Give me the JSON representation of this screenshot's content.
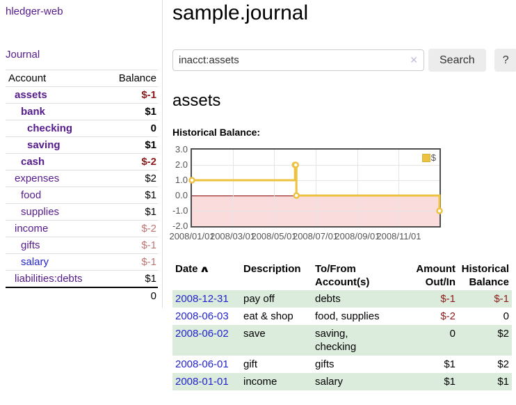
{
  "sidebar": {
    "app_title": "hledger-web",
    "journal_label": "Journal",
    "accounts_table": {
      "headers": {
        "account": "Account",
        "balance": "Balance"
      },
      "rows": [
        {
          "name": "assets",
          "depth": 1,
          "bold": true,
          "balance": "$-1",
          "neg": "strong",
          "link_color": "purple"
        },
        {
          "name": "bank",
          "depth": 2,
          "bold": true,
          "balance": "$1",
          "neg": "none",
          "link_color": "purple"
        },
        {
          "name": "checking",
          "depth": 3,
          "bold": true,
          "balance": "0",
          "neg": "none",
          "link_color": "purple"
        },
        {
          "name": "saving",
          "depth": 3,
          "bold": true,
          "balance": "$1",
          "neg": "none",
          "link_color": "purple"
        },
        {
          "name": "cash",
          "depth": 2,
          "bold": true,
          "balance": "$-2",
          "neg": "strong",
          "link_color": "purple"
        },
        {
          "name": "expenses",
          "depth": 1,
          "bold": false,
          "balance": "$2",
          "neg": "none",
          "link_color": "purple"
        },
        {
          "name": "food",
          "depth": 2,
          "bold": false,
          "balance": "$1",
          "neg": "none",
          "link_color": "purple"
        },
        {
          "name": "supplies",
          "depth": 2,
          "bold": false,
          "balance": "$1",
          "neg": "none",
          "link_color": "purple"
        },
        {
          "name": "income",
          "depth": 1,
          "bold": false,
          "balance": "$-2",
          "neg": "muted",
          "link_color": "purple"
        },
        {
          "name": "gifts",
          "depth": 2,
          "bold": false,
          "balance": "$-1",
          "neg": "muted",
          "link_color": "purple"
        },
        {
          "name": "salary",
          "depth": 2,
          "bold": false,
          "balance": "$-1",
          "neg": "muted",
          "link_color": "blue"
        },
        {
          "name": "liabilities:debts",
          "depth": 1,
          "bold": false,
          "balance": "$1",
          "neg": "none",
          "link_color": "purple"
        }
      ],
      "total": "0"
    }
  },
  "header": {
    "title": "sample.journal"
  },
  "search": {
    "query": "inacct:assets",
    "clear_icon": "✕",
    "button_label": "Search",
    "help_label": "?"
  },
  "account_page": {
    "heading": "assets",
    "chart_label": "Historical Balance:"
  },
  "chart_data": {
    "type": "line",
    "title": "Historical Balance",
    "step": true,
    "series": [
      {
        "name": "$",
        "color": "#edc240",
        "points": [
          [
            "2008-01-01",
            1
          ],
          [
            "2008-06-01",
            2
          ],
          [
            "2008-06-02",
            2
          ],
          [
            "2008-06-03",
            0
          ],
          [
            "2008-12-31",
            -1
          ]
        ]
      }
    ],
    "x_range": [
      "2008-01-01",
      "2008-12-31"
    ],
    "x_ticks": [
      "2008/01/01",
      "2008/03/01",
      "2008/05/01",
      "2008/07/01",
      "2008/09/01",
      "2008/11/01"
    ],
    "y_ticks": [
      "3.0",
      "2.0",
      "1.0",
      "0.0",
      "-1.0",
      "-2.0"
    ],
    "ylim": [
      -2,
      3
    ],
    "grid": true,
    "legend": {
      "label": "$",
      "position": "top-right"
    },
    "colors": {
      "line": "#edc240",
      "marker_fill": "#ffffff",
      "negative_region": "#fbdcdc",
      "zero_line": "#8b0000",
      "gridline": "#e5e5e5",
      "plot_border": "#4d4d4d",
      "tick_text": "#545454"
    }
  },
  "transactions": {
    "headers": {
      "date": "Date",
      "sort_icon": "∧",
      "description": "Description",
      "tofrom": "To/From\nAccount(s)",
      "amount": "Amount\nOut/In",
      "historical": "Historical\nBalance"
    },
    "rows": [
      {
        "date": "2008-12-31",
        "description": "pay off",
        "accounts": "debts",
        "amount": "$-1",
        "amount_neg": true,
        "balance": "$-1",
        "balance_neg": true
      },
      {
        "date": "2008-06-03",
        "description": "eat & shop",
        "accounts": "food, supplies",
        "amount": "$-2",
        "amount_neg": true,
        "balance": "0",
        "balance_neg": false
      },
      {
        "date": "2008-06-02",
        "description": "save",
        "accounts": "saving,\nchecking",
        "amount": "0",
        "amount_neg": false,
        "balance": "$2",
        "balance_neg": false
      },
      {
        "date": "2008-06-01",
        "description": "gift",
        "accounts": "gifts",
        "amount": "$1",
        "amount_neg": false,
        "balance": "$2",
        "balance_neg": false
      },
      {
        "date": "2008-01-01",
        "description": "income",
        "accounts": "salary",
        "amount": "$1",
        "amount_neg": false,
        "balance": "$1",
        "balance_neg": false
      }
    ]
  }
}
